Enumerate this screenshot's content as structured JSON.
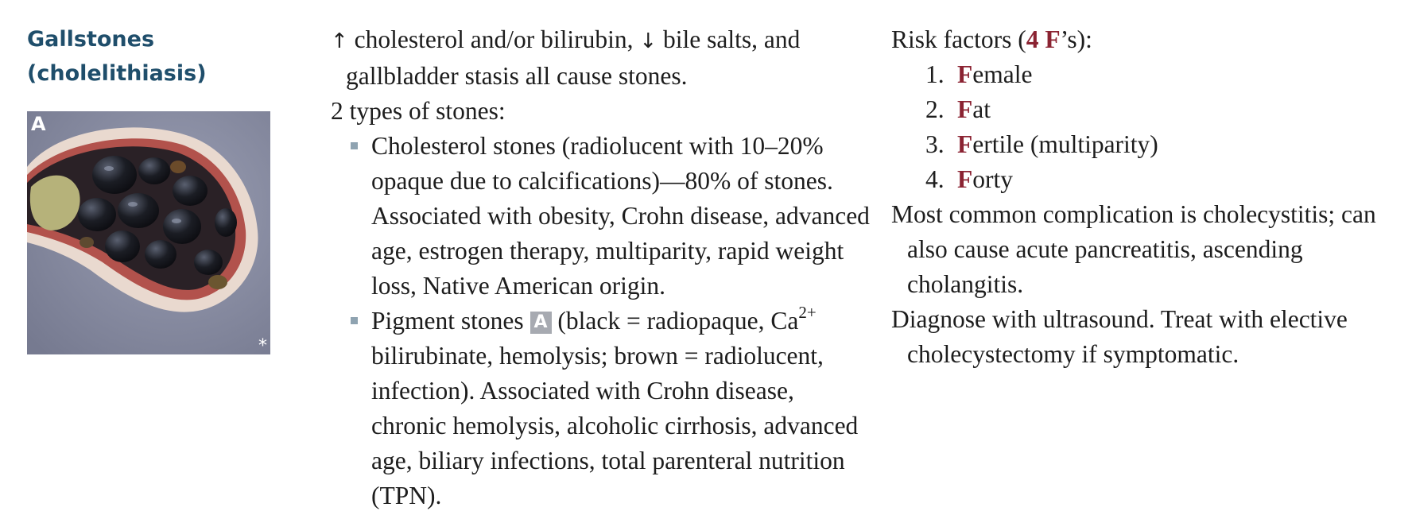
{
  "title": {
    "line1": "Gallstones",
    "line2": "(cholelithiasis)"
  },
  "figure": {
    "label": "A",
    "mark": "*"
  },
  "middle": {
    "p1_text": "cholesterol and/or bilirubin,",
    "p1_text2": "bile salts, and gallbladder stasis all cause stones.",
    "p2": "2 types of stones:",
    "b1": "Cholesterol stones (radiolucent with 10–20% opaque due to calcifications)—80% of stones. Associated with obesity, Crohn disease, advanced age, estrogen therapy, multiparity, rapid weight loss, Native American origin.",
    "b2_pre": "Pigment stones",
    "b2_box": "A",
    "b2_mid": "(black = radiopaque, Ca",
    "b2_sup": "2+",
    "b2_post": "bilirubinate, hemolysis; brown = radiolucent, infection). Associated with Crohn disease, chronic hemolysis, alcoholic cirrhosis, advanced age, biliary infections, total parenteral nutrition (TPN)."
  },
  "right": {
    "rf_pre": "Risk factors (",
    "rf_emph": "4 F",
    "rf_post": "’s):",
    "items": [
      {
        "num": "1.",
        "f": "F",
        "rest": "emale"
      },
      {
        "num": "2.",
        "f": "F",
        "rest": "at"
      },
      {
        "num": "3.",
        "f": "F",
        "rest": "ertile (multiparity)"
      },
      {
        "num": "4.",
        "f": "F",
        "rest": "orty"
      }
    ],
    "p2": "Most common complication is cholecystitis; can also cause acute pancreatitis, ascending cholangitis.",
    "p3": "Diagnose with ultrasound. Treat with elective cholecystectomy if symptomatic."
  },
  "colors": {
    "heading": "#1f4e6b",
    "accent_f": "#8b2332",
    "bullet": "#8fa3b1"
  },
  "icons": {
    "up": "up-arrow-icon",
    "down": "down-arrow-icon"
  }
}
